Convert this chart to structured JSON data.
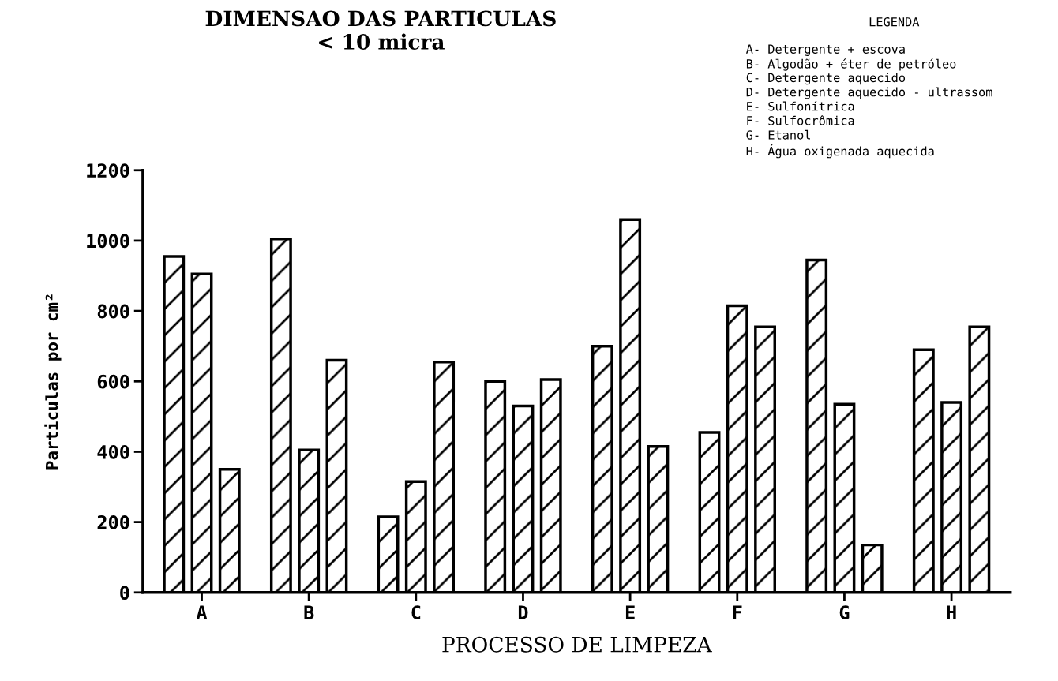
{
  "chart_data": {
    "type": "bar",
    "title": "DIMENSAO DAS PARTICULAS\n< 10 micra",
    "xlabel": "PROCESSO DE LIMPEZA",
    "ylabel": "Particulas por cm²",
    "categories": [
      "A",
      "B",
      "C",
      "D",
      "E",
      "F",
      "G",
      "H"
    ],
    "series": [
      {
        "color": "#000000",
        "values": [
          955,
          1005,
          215,
          600,
          700,
          455,
          945,
          690
        ]
      },
      {
        "color": "#000000",
        "values": [
          905,
          405,
          315,
          530,
          1060,
          815,
          535,
          540
        ]
      },
      {
        "color": "#000000",
        "values": [
          350,
          660,
          655,
          605,
          415,
          755,
          135,
          755
        ]
      }
    ],
    "ylim": [
      0,
      1200
    ],
    "yticks": [
      0,
      200,
      400,
      600,
      800,
      1000,
      1200
    ],
    "grid": false,
    "legend": false,
    "annotations": [
      "LEGENDA",
      "A- Detergente + escova",
      "B- Algodão + éter de petróleo",
      "C- Detergente aquecido",
      "D- Detergente aquecido - ultrassom",
      "E- Sulfonítrica",
      "F- Sulfocrômica",
      "G- Etanol",
      "H- Água oxigenada aquecida"
    ]
  }
}
